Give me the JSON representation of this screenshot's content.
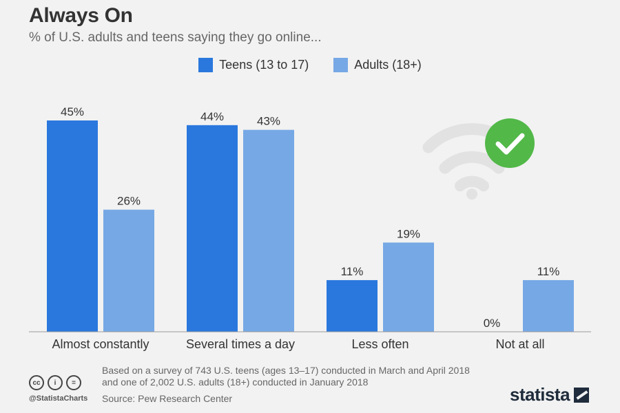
{
  "chart_data": {
    "type": "bar",
    "title": "Always On",
    "subtitle": "% of U.S. adults and teens saying they go online...",
    "categories": [
      "Almost constantly",
      "Several times a day",
      "Less often",
      "Not at all"
    ],
    "series": [
      {
        "name": "Teens (13 to 17)",
        "values": [
          45,
          44,
          11,
          0
        ],
        "labels": [
          "45%",
          "44%",
          "11%",
          "0%"
        ],
        "color": "#2a78dd"
      },
      {
        "name": "Adults (18+)",
        "values": [
          26,
          43,
          19,
          11
        ],
        "labels": [
          "26%",
          "43%",
          "19%",
          "11%"
        ],
        "color": "#76a8e5"
      }
    ],
    "xlabel": "",
    "ylabel": "",
    "ylim": [
      0,
      45
    ],
    "grid": false,
    "legend_position": "top-center"
  },
  "footer": {
    "note_line1": "Based on a survey of 743 U.S. teens (ages 13–17) conducted in March and April 2018",
    "note_line2": "and one of 2,002 U.S. adults (18+) conducted in January 2018",
    "source": "Source: Pew Research Center",
    "handle": "@StatistaCharts",
    "brand": "statista"
  },
  "icons": {
    "license": [
      "cc-icon",
      "by-icon",
      "nd-icon"
    ],
    "license_glyphs": [
      "cc",
      "i",
      "="
    ],
    "decoration": "wifi-check-icon",
    "check_color": "#52b848",
    "wifi_color": "#e2e2e2"
  }
}
